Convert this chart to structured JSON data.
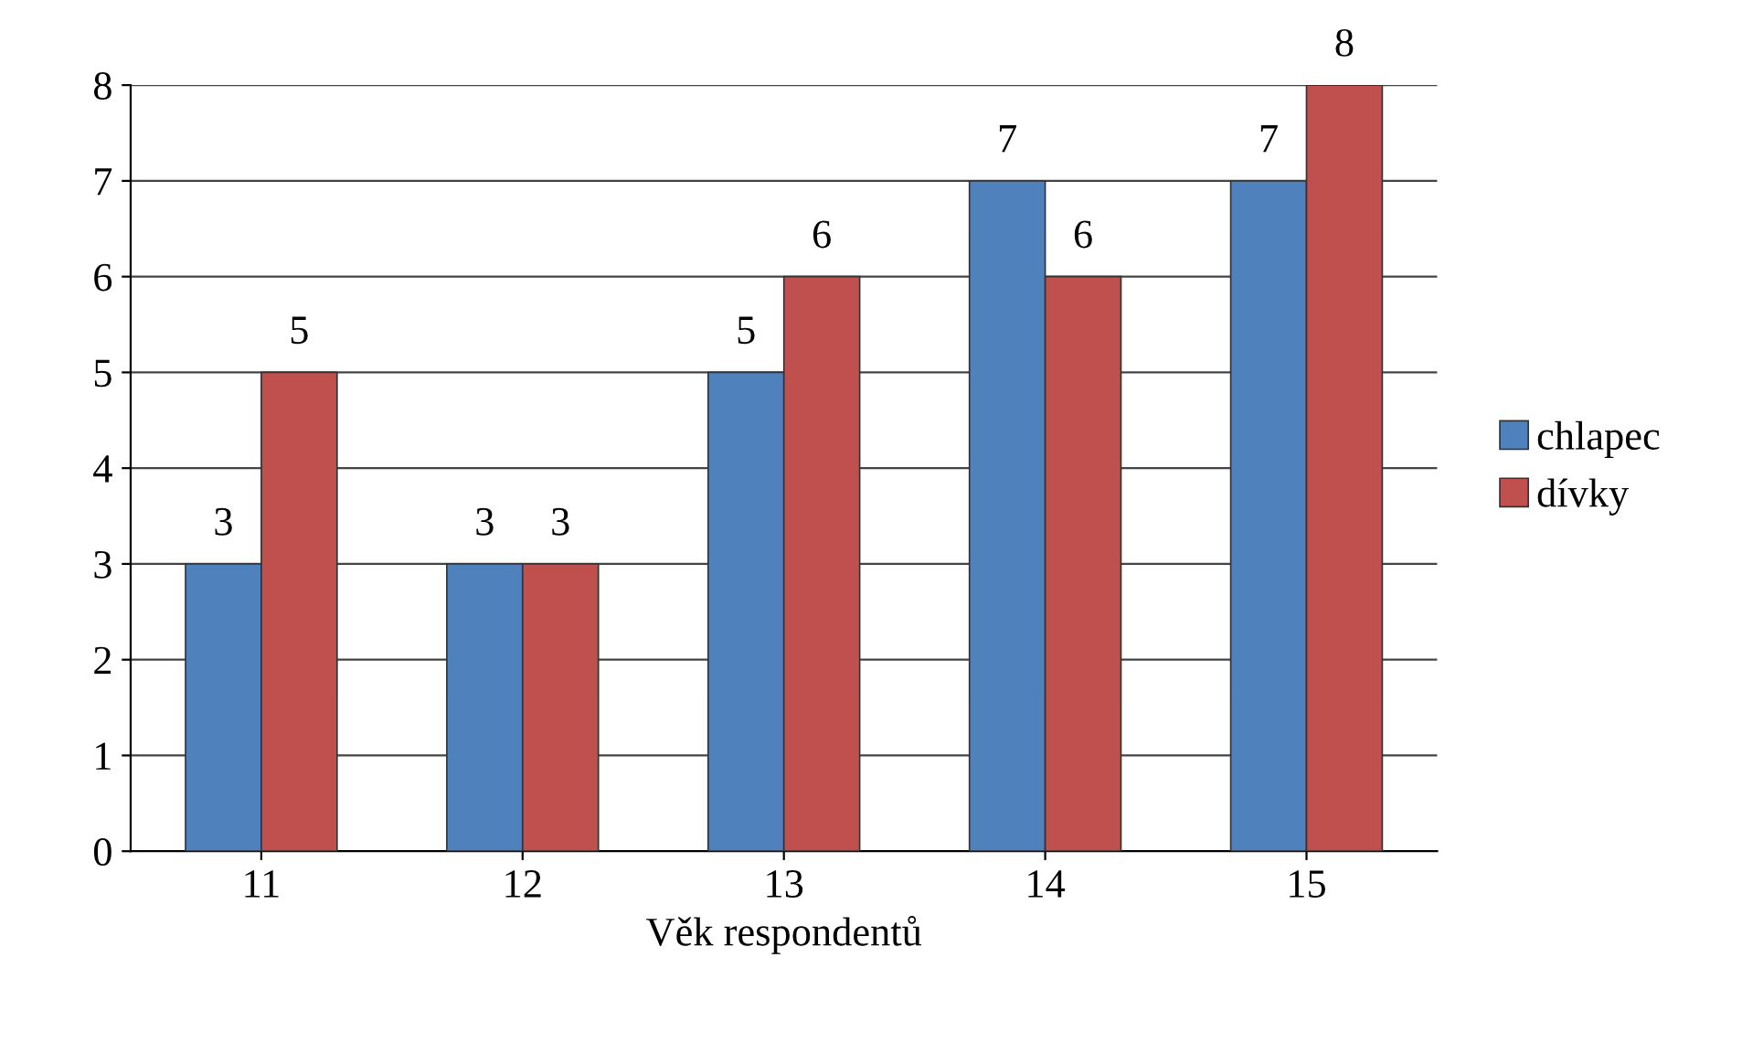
{
  "chart_data": {
    "type": "bar",
    "xlabel": "Věk respondentů",
    "categories": [
      "11",
      "12",
      "13",
      "14",
      "15"
    ],
    "series": [
      {
        "name": "chlapec",
        "color": "#4f81bd",
        "values": [
          3,
          3,
          5,
          7,
          7
        ]
      },
      {
        "name": "dívky",
        "color": "#c0504d",
        "values": [
          5,
          3,
          6,
          6,
          8
        ]
      }
    ],
    "ylim": [
      0,
      8
    ],
    "yticks": [
      0,
      1,
      2,
      3,
      4,
      5,
      6,
      7,
      8
    ],
    "grid": "y",
    "legend": "right",
    "data_labels": true
  }
}
